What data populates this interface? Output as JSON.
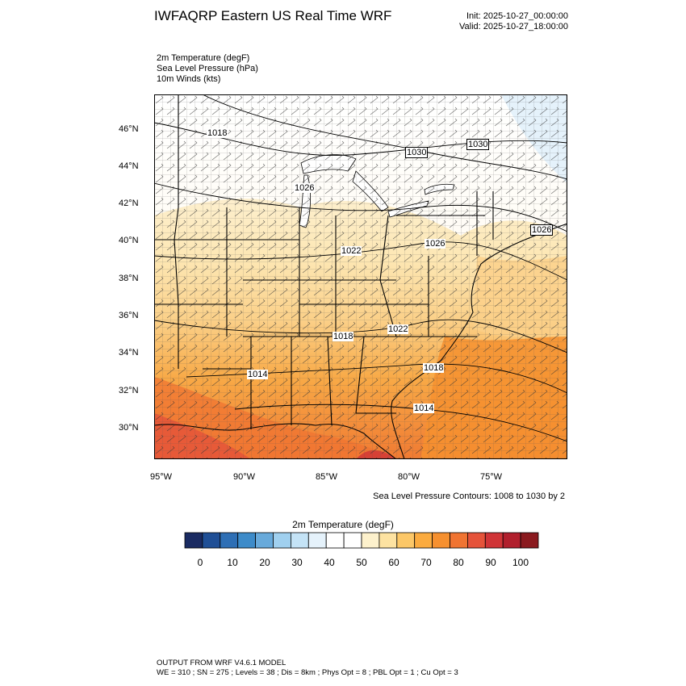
{
  "header": {
    "title": "IWFAQRP Eastern US Real Time WRF",
    "init": "Init: 2025-10-27_00:00:00",
    "valid": "Valid: 2025-10-27_18:00:00"
  },
  "variables": [
    "2m Temperature   (degF)",
    "Sea Level Pressure   (hPa)",
    "10m Winds   (kts)"
  ],
  "map": {
    "lat_labels": [
      "46°N",
      "44°N",
      "42°N",
      "40°N",
      "38°N",
      "36°N",
      "34°N",
      "32°N",
      "30°N"
    ],
    "lon_labels": [
      "95°W",
      "90°W",
      "85°W",
      "80°W",
      "75°W"
    ],
    "pressure_labels": [
      "1018",
      "1030",
      "1030",
      "1026",
      "1026",
      "1026",
      "1022",
      "1018",
      "1022",
      "1014",
      "1018",
      "1014"
    ],
    "contour_note": "Sea Level Pressure Contours: 1008 to 1030 by 2"
  },
  "colorbar": {
    "title": "2m Temperature  (degF)",
    "labels": [
      "0",
      "10",
      "20",
      "30",
      "40",
      "50",
      "60",
      "70",
      "80",
      "90",
      "100"
    ],
    "colors": [
      "#1a2b62",
      "#1f4f96",
      "#2e6fb5",
      "#3d8bc9",
      "#68aadb",
      "#a0d0ef",
      "#c4e3f6",
      "#e5f2fb",
      "#ffffff",
      "#ffffff",
      "#fdf1cc",
      "#fde2a1",
      "#fcc767",
      "#fbab3f",
      "#f6902f",
      "#f07432",
      "#e5533a",
      "#d03437",
      "#b11f2d",
      "#8b1a1f"
    ]
  },
  "footer": {
    "line1": "OUTPUT FROM WRF V4.6.1 MODEL",
    "line2": "WE = 310 ; SN = 275 ; Levels = 38 ; Dis = 8km ; Phys Opt = 8 ; PBL Opt = 1 ; Cu Opt = 3"
  }
}
